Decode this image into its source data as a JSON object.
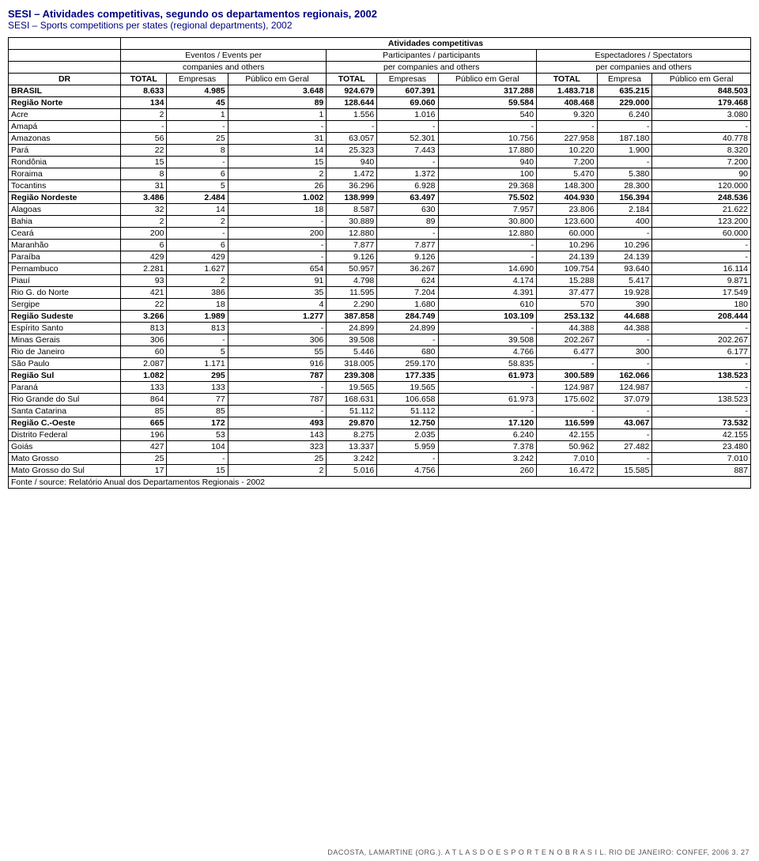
{
  "title_main": "SESI – Atividades competitivas, segundo os departamentos regionais, 2002",
  "title_sub": "SESI – Sports competitions per states (regional departments), 2002",
  "superheader": "Atividades competitivas",
  "group_headers": {
    "g1a": "Eventos / Events per",
    "g1b": "companies and others",
    "g2a": "Participantes / participants",
    "g2b": "per companies and others",
    "g3a": "Espectadores / Spectators",
    "g3b": "per companies and others"
  },
  "col_headers": {
    "dr": "DR",
    "total": "TOTAL",
    "empresas": "Empresas",
    "publico": "Público em Geral",
    "empresa": "Empresa"
  },
  "rows": [
    {
      "bold": true,
      "label": "BRASIL",
      "c": [
        "8.633",
        "4.985",
        "3.648",
        "924.679",
        "607.391",
        "317.288",
        "1.483.718",
        "635.215",
        "848.503"
      ]
    },
    {
      "bold": true,
      "label": "Região Norte",
      "c": [
        "134",
        "45",
        "89",
        "128.644",
        "69.060",
        "59.584",
        "408.468",
        "229.000",
        "179.468"
      ]
    },
    {
      "label": "Acre",
      "c": [
        "2",
        "1",
        "1",
        "1.556",
        "1.016",
        "540",
        "9.320",
        "6.240",
        "3.080"
      ]
    },
    {
      "label": "Amapá",
      "c": [
        "-",
        "-",
        "-",
        "-",
        "-",
        "-",
        "-",
        "-",
        "-"
      ]
    },
    {
      "label": "Amazonas",
      "c": [
        "56",
        "25",
        "31",
        "63.057",
        "52.301",
        "10.756",
        "227.958",
        "187.180",
        "40.778"
      ]
    },
    {
      "label": "Pará",
      "c": [
        "22",
        "8",
        "14",
        "25.323",
        "7.443",
        "17.880",
        "10.220",
        "1.900",
        "8.320"
      ]
    },
    {
      "label": "Rondônia",
      "c": [
        "15",
        "-",
        "15",
        "940",
        "-",
        "940",
        "7.200",
        "-",
        "7.200"
      ]
    },
    {
      "label": "Roraima",
      "c": [
        "8",
        "6",
        "2",
        "1.472",
        "1.372",
        "100",
        "5.470",
        "5.380",
        "90"
      ]
    },
    {
      "label": "Tocantins",
      "c": [
        "31",
        "5",
        "26",
        "36.296",
        "6.928",
        "29.368",
        "148.300",
        "28.300",
        "120.000"
      ]
    },
    {
      "bold": true,
      "label": "Região Nordeste",
      "c": [
        "3.486",
        "2.484",
        "1.002",
        "138.999",
        "63.497",
        "75.502",
        "404.930",
        "156.394",
        "248.536"
      ]
    },
    {
      "label": "Alagoas",
      "c": [
        "32",
        "14",
        "18",
        "8.587",
        "630",
        "7.957",
        "23.806",
        "2.184",
        "21.622"
      ]
    },
    {
      "label": "Bahia",
      "c": [
        "2",
        "2",
        "-",
        "30.889",
        "89",
        "30.800",
        "123.600",
        "400",
        "123.200"
      ]
    },
    {
      "label": "Ceará",
      "c": [
        "200",
        "-",
        "200",
        "12.880",
        "-",
        "12.880",
        "60.000",
        "-",
        "60.000"
      ]
    },
    {
      "label": "Maranhão",
      "c": [
        "6",
        "6",
        "-",
        "7.877",
        "7.877",
        "-",
        "10.296",
        "10.296",
        "-"
      ]
    },
    {
      "label": "Paraíba",
      "c": [
        "429",
        "429",
        "-",
        "9.126",
        "9.126",
        "-",
        "24.139",
        "24.139",
        "-"
      ]
    },
    {
      "label": "Pernambuco",
      "c": [
        "2.281",
        "1.627",
        "654",
        "50.957",
        "36.267",
        "14.690",
        "109.754",
        "93.640",
        "16.114"
      ]
    },
    {
      "label": "Piauí",
      "c": [
        "93",
        "2",
        "91",
        "4.798",
        "624",
        "4.174",
        "15.288",
        "5.417",
        "9.871"
      ]
    },
    {
      "label": "Rio G. do Norte",
      "c": [
        "421",
        "386",
        "35",
        "11.595",
        "7.204",
        "4.391",
        "37.477",
        "19.928",
        "17.549"
      ]
    },
    {
      "label": "Sergipe",
      "c": [
        "22",
        "18",
        "4",
        "2.290",
        "1.680",
        "610",
        "570",
        "390",
        "180"
      ]
    },
    {
      "bold": true,
      "label": "Região Sudeste",
      "c": [
        "3.266",
        "1.989",
        "1.277",
        "387.858",
        "284.749",
        "103.109",
        "253.132",
        "44.688",
        "208.444"
      ]
    },
    {
      "label": "Espírito Santo",
      "c": [
        "813",
        "813",
        "-",
        "24.899",
        "24.899",
        "-",
        "44.388",
        "44.388",
        "-"
      ]
    },
    {
      "label": "Minas Gerais",
      "c": [
        "306",
        "-",
        "306",
        "39.508",
        "-",
        "39.508",
        "202.267",
        "-",
        "202.267"
      ]
    },
    {
      "label": "Rio de Janeiro",
      "c": [
        "60",
        "5",
        "55",
        "5.446",
        "680",
        "4.766",
        "6.477",
        "300",
        "6.177"
      ]
    },
    {
      "label": "São Paulo",
      "c": [
        "2.087",
        "1.171",
        "916",
        "318.005",
        "259.170",
        "58.835",
        "-",
        "-",
        "-"
      ]
    },
    {
      "bold": true,
      "label": "Região Sul",
      "c": [
        "1.082",
        "295",
        "787",
        "239.308",
        "177.335",
        "61.973",
        "300.589",
        "162.066",
        "138.523"
      ]
    },
    {
      "label": "Paraná",
      "c": [
        "133",
        "133",
        "-",
        "19.565",
        "19.565",
        "-",
        "124.987",
        "124.987",
        "-"
      ]
    },
    {
      "label": "Rio Grande do Sul",
      "c": [
        "864",
        "77",
        "787",
        "168.631",
        "106.658",
        "61.973",
        "175.602",
        "37.079",
        "138.523"
      ]
    },
    {
      "label": "Santa Catarina",
      "c": [
        "85",
        "85",
        "-",
        "51.112",
        "51.112",
        "-",
        "-",
        "-",
        "-"
      ]
    },
    {
      "bold": true,
      "label": "Região C.-Oeste",
      "c": [
        "665",
        "172",
        "493",
        "29.870",
        "12.750",
        "17.120",
        "116.599",
        "43.067",
        "73.532"
      ]
    },
    {
      "label": "Distrito Federal",
      "c": [
        "196",
        "53",
        "143",
        "8.275",
        "2.035",
        "6.240",
        "42.155",
        "-",
        "42.155"
      ]
    },
    {
      "label": "Goiás",
      "c": [
        "427",
        "104",
        "323",
        "13.337",
        "5.959",
        "7.378",
        "50.962",
        "27.482",
        "23.480"
      ]
    },
    {
      "label": "Mato Grosso",
      "c": [
        "25",
        "-",
        "25",
        "3.242",
        "-",
        "3.242",
        "7.010",
        "-",
        "7.010"
      ]
    },
    {
      "label": "Mato Grosso do Sul",
      "c": [
        "17",
        "15",
        "2",
        "5.016",
        "4.756",
        "260",
        "16.472",
        "15.585",
        "887"
      ]
    }
  ],
  "source": "Fonte / source: Relatório Anual dos Departamentos Regionais - 2002",
  "footer": "DACOSTA, LAMARTINE (ORG.). A T L A S   D O   E S P O R T E   N O   B R A S I L.  RIO DE JANEIRO: CONFEF, 2006   3. 27"
}
